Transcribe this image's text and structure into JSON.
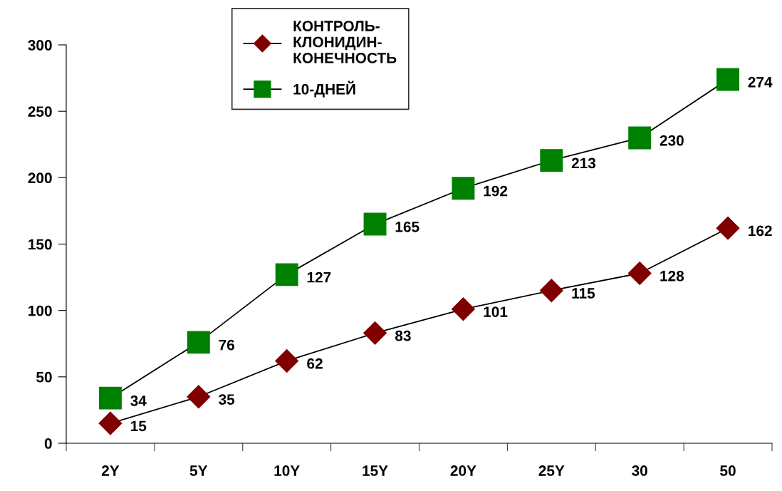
{
  "chart_data": {
    "type": "line",
    "categories": [
      "2Y",
      "5Y",
      "10Y",
      "15Y",
      "20Y",
      "25Y",
      "30",
      "50"
    ],
    "series": [
      {
        "name": "КОНТРОЛЬ-\nКЛОНИДИН-\nКОНЕЧНОСТЬ",
        "color": "#800000",
        "marker": "diamond",
        "values": [
          15,
          35,
          62,
          83,
          101,
          115,
          128,
          162
        ]
      },
      {
        "name": "10-ДНЕЙ",
        "color": "#008000",
        "marker": "square",
        "values": [
          34,
          76,
          127,
          165,
          192,
          213,
          230,
          274
        ]
      }
    ],
    "ylim": [
      0,
      300
    ],
    "yticks": [
      0,
      50,
      100,
      150,
      200,
      250,
      300
    ],
    "grid": false,
    "legend": "top",
    "data_labels": true,
    "line_style": "solid"
  }
}
